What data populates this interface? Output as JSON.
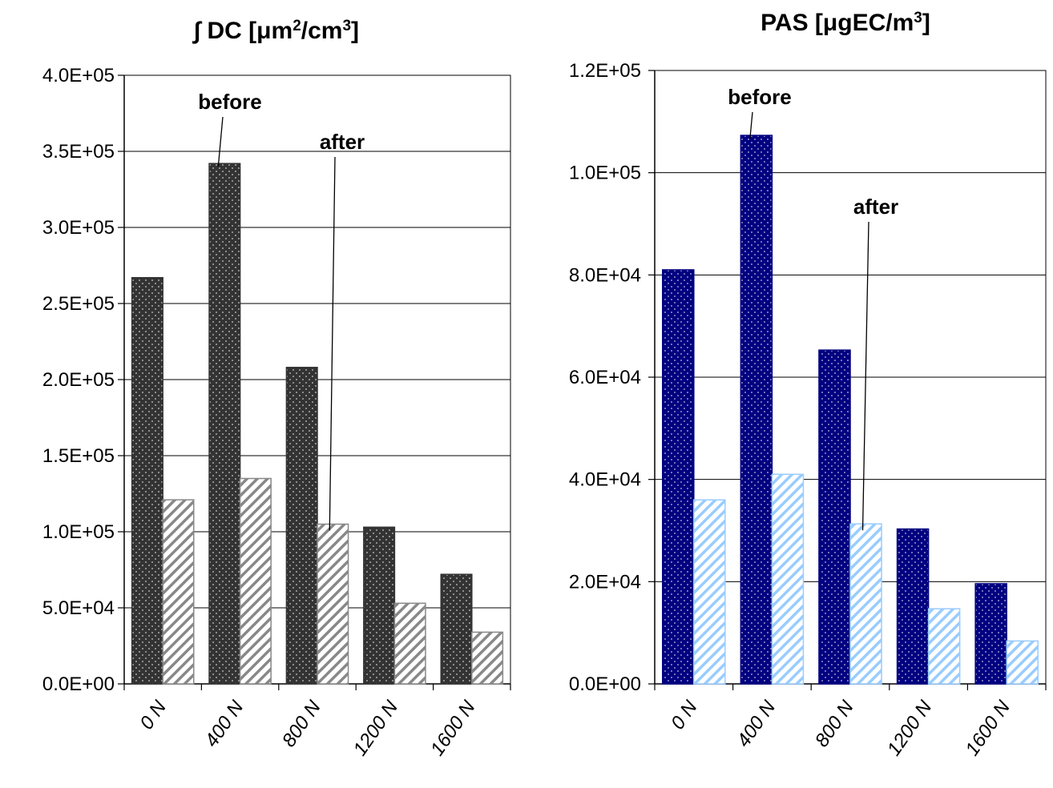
{
  "chart_data": [
    {
      "type": "bar",
      "title": "∫ DC [μm²/cm³]",
      "title_parts": {
        "prefix": "∫ DC [μm",
        "sup1": "2",
        "mid": "/cm",
        "sup2": "3",
        "suffix": "]"
      },
      "categories": [
        "0 N",
        "400 N",
        "800 N",
        "1200 N",
        "1600 N"
      ],
      "series": [
        {
          "name": "before",
          "values": [
            267000,
            342000,
            208000,
            103000,
            72000
          ],
          "color": "#333333",
          "pattern": "dots"
        },
        {
          "name": "after",
          "values": [
            121000,
            135000,
            105000,
            53000,
            34000
          ],
          "color": "#888888",
          "pattern": "diagonal"
        }
      ],
      "ylim": [
        0,
        400000
      ],
      "y_ticks": [
        "0.0E+00",
        "5.0E+04",
        "1.0E+05",
        "1.5E+05",
        "2.0E+05",
        "2.5E+05",
        "3.0E+05",
        "3.5E+05",
        "4.0E+05"
      ],
      "grid": true,
      "annotations": [
        {
          "text": "before",
          "series": 0,
          "category": 1
        },
        {
          "text": "after",
          "series": 1,
          "category": 2
        }
      ]
    },
    {
      "type": "bar",
      "title": "PAS [μgEC/m³]",
      "title_parts": {
        "prefix": "PAS [μgEC/m",
        "sup1": "3",
        "mid": "",
        "sup2": "",
        "suffix": "]"
      },
      "categories": [
        "0 N",
        "400 N",
        "800 N",
        "1200 N",
        "1600 N"
      ],
      "series": [
        {
          "name": "before",
          "values": [
            81000,
            107300,
            65300,
            30300,
            19600
          ],
          "color": "#000080",
          "pattern": "dots"
        },
        {
          "name": "after",
          "values": [
            36000,
            41000,
            31300,
            14700,
            8400
          ],
          "color": "#99ccff",
          "pattern": "diagonal"
        }
      ],
      "ylim": [
        0,
        120000
      ],
      "y_ticks": [
        "0.0E+00",
        "2.0E+04",
        "4.0E+04",
        "6.0E+04",
        "8.0E+04",
        "1.0E+05",
        "1.2E+05"
      ],
      "grid": true,
      "annotations": [
        {
          "text": "before",
          "series": 0,
          "category": 1
        },
        {
          "text": "after",
          "series": 1,
          "category": 2
        }
      ]
    }
  ]
}
